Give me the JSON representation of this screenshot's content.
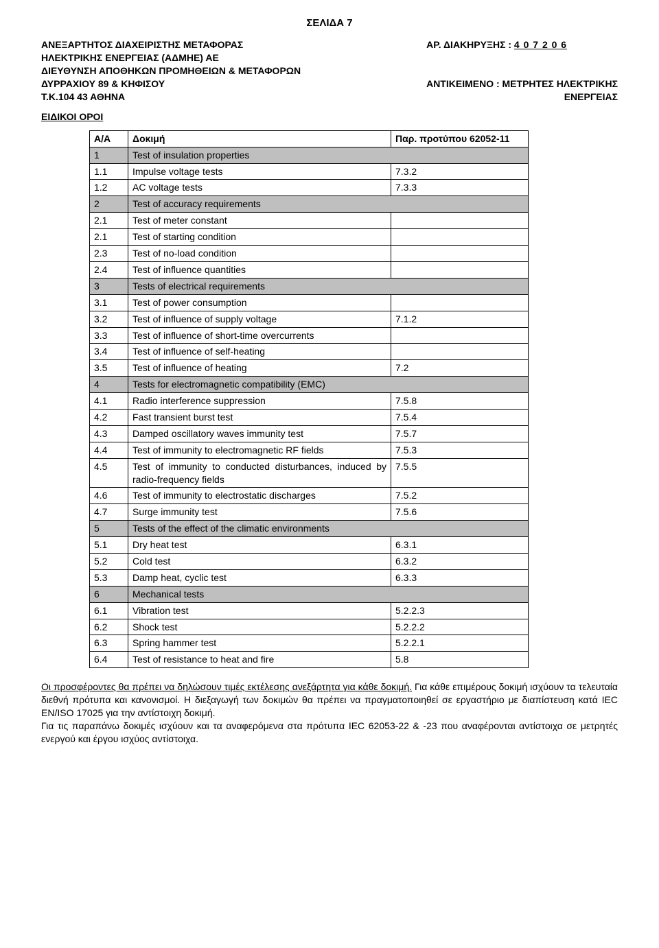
{
  "page_label": "ΣΕΛΙΔΑ 7",
  "org": {
    "line1": "ΑΝΕΞΑΡΤΗΤΟΣ ΔΙΑΧΕΙΡΙΣΤΗΣ ΜΕΤΑΦΟΡΑΣ",
    "line2": "ΗΛΕΚΤΡΙΚΗΣ ΕΝΕΡΓΕΙΑΣ (ΑΔΜΗΕ) ΑΕ",
    "line3": "ΔΙΕΥΘΥΝΣΗ ΑΠΟΘΗΚΩΝ ΠΡΟΜΗΘΕΙΩΝ & ΜΕΤΑΦΟΡΩΝ",
    "line4": "ΔΥΡΡΑΧΙΟΥ 89 & ΚΗΦΙΣΟΥ",
    "line5": "Τ.Κ.104 43 ΑΘΗΝΑ"
  },
  "right": {
    "announce_label": "ΑΡ. ΔΙΑΚΗΡΥΞΗΣ :",
    "announce_value": "4 0 7 2 0 6",
    "subject_label": "ΑΝΤΙΚΕΙΜΕΝΟ : ΜΕΤΡΗΤΕΣ ΗΛΕΚΤΡΙΚΗΣ",
    "subject_line2": "ΕΝΕΡΓΕΙΑΣ"
  },
  "section_title": "ΕΙΔΙΚΟΙ ΟΡΟΙ",
  "table": {
    "headers": {
      "aa": "Α/Α",
      "test": "Δοκιμή",
      "ref": "Παρ. προτύπου 62052-11"
    },
    "rows": [
      {
        "type": "group",
        "aa": "1",
        "test": "Test of insulation properties"
      },
      {
        "type": "row",
        "aa": "1.1",
        "test": "Impulse voltage tests",
        "ref": "7.3.2"
      },
      {
        "type": "row",
        "aa": "1.2",
        "test": "AC voltage tests",
        "ref": "7.3.3"
      },
      {
        "type": "group",
        "aa": "2",
        "test": "Test of accuracy requirements"
      },
      {
        "type": "row",
        "aa": "2.1",
        "test": "Test of meter constant",
        "ref": ""
      },
      {
        "type": "row",
        "aa": "2.1",
        "test": "Test of starting condition",
        "ref": ""
      },
      {
        "type": "row",
        "aa": "2.3",
        "test": "Test of no-load condition",
        "ref": ""
      },
      {
        "type": "row",
        "aa": "2.4",
        "test": "Test of influence quantities",
        "ref": ""
      },
      {
        "type": "group",
        "aa": "3",
        "test": "Tests of electrical requirements"
      },
      {
        "type": "row",
        "aa": "3.1",
        "test": "Test of power consumption",
        "ref": ""
      },
      {
        "type": "row",
        "aa": "3.2",
        "test": "Test of influence of supply voltage",
        "ref": "7.1.2"
      },
      {
        "type": "row",
        "aa": "3.3",
        "test": "Test of influence of short-time overcurrents",
        "ref": ""
      },
      {
        "type": "row",
        "aa": "3.4",
        "test": "Test of influence of self-heating",
        "ref": ""
      },
      {
        "type": "row",
        "aa": "3.5",
        "test": "Test of influence of heating",
        "ref": "7.2"
      },
      {
        "type": "group",
        "aa": "4",
        "test": "Tests for electromagnetic compatibility (EMC)"
      },
      {
        "type": "row",
        "aa": "4.1",
        "test": "Radio interference suppression",
        "ref": "7.5.8"
      },
      {
        "type": "row",
        "aa": "4.2",
        "test": "Fast transient burst test",
        "ref": "7.5.4"
      },
      {
        "type": "row",
        "aa": "4.3",
        "test": "Damped oscillatory waves immunity test",
        "ref": "7.5.7"
      },
      {
        "type": "row",
        "aa": "4.4",
        "test": "Test of immunity to electromagnetic RF fields",
        "ref": "7.5.3"
      },
      {
        "type": "row",
        "aa": "4.5",
        "test": "Test of immunity to conducted disturbances, induced by radio-frequency fields",
        "ref": "7.5.5"
      },
      {
        "type": "row",
        "aa": "4.6",
        "test": "Test of immunity to electrostatic discharges",
        "ref": "7.5.2"
      },
      {
        "type": "row",
        "aa": "4.7",
        "test": "Surge immunity test",
        "ref": "7.5.6"
      },
      {
        "type": "group",
        "aa": "5",
        "test": "Tests of the effect of the climatic environments"
      },
      {
        "type": "row",
        "aa": "5.1",
        "test": "Dry heat test",
        "ref": "6.3.1"
      },
      {
        "type": "row",
        "aa": "5.2",
        "test": "Cold test",
        "ref": "6.3.2"
      },
      {
        "type": "row",
        "aa": "5.3",
        "test": "Damp heat, cyclic test",
        "ref": "6.3.3"
      },
      {
        "type": "group",
        "aa": "6",
        "test": "Mechanical tests"
      },
      {
        "type": "row",
        "aa": "6.1",
        "test": "Vibration test",
        "ref": "5.2.2.3"
      },
      {
        "type": "row",
        "aa": "6.2",
        "test": "Shock test",
        "ref": "5.2.2.2"
      },
      {
        "type": "row",
        "aa": "6.3",
        "test": "Spring hammer test",
        "ref": "5.2.2.1"
      },
      {
        "type": "row",
        "aa": "6.4",
        "test": "Test of resistance to heat and fire",
        "ref": "5.8"
      }
    ]
  },
  "footer": {
    "sentence1": "Οι προσφέροντες  θα πρέπει να δηλώσουν τιμές εκτέλεσης ανεξάρτητα για κάθε δοκιμή.",
    "sentence2": " Για κάθε επιμέρους δοκιμή ισχύουν τα τελευταία διεθνή πρότυπα και κανονισμοί. Η διεξαγωγή των δοκιμών θα πρέπει να πραγματοποιηθεί σε εργαστήριο με διαπίστευση κατά IEC EN/ISO 17025 για την αντίστοιχη δοκιμή.",
    "sentence3": "Για τις παραπάνω δοκιμές ισχύουν και τα αναφερόμενα στα πρότυπα IEC 62053-22 & -23 που αναφέρονται αντίστοιχα σε μετρητές ενεργού και έργου ισχύος αντίστοιχα."
  },
  "style": {
    "group_bg": "#bfbfbf",
    "font_size_pt": 11
  }
}
